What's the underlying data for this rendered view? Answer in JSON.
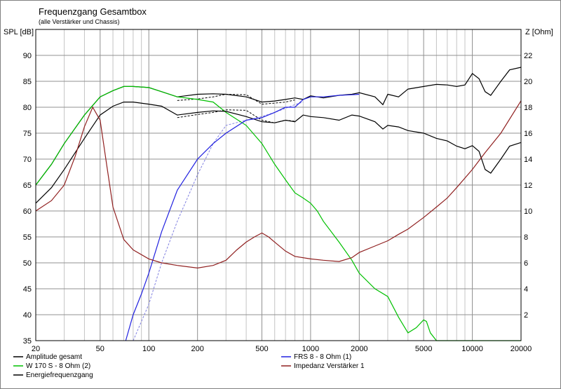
{
  "chart_data": {
    "type": "line",
    "title": "Frequenzgang Gesamtbox",
    "subtitle": "(alle Verstärker und Chassis)",
    "ylabel": "SPL [dB]",
    "y2label": "Z [Ohm]",
    "xscale": "log",
    "xlim": [
      20,
      20000
    ],
    "ylim": [
      35,
      95
    ],
    "y2lim": [
      0,
      24
    ],
    "xticks": [
      20,
      50,
      100,
      200,
      500,
      1000,
      2000,
      5000,
      10000,
      20000
    ],
    "yticks": [
      35,
      40,
      45,
      50,
      55,
      60,
      65,
      70,
      75,
      80,
      85,
      90
    ],
    "y2ticks": [
      2,
      4,
      6,
      8,
      10,
      12,
      14,
      16,
      18,
      20,
      22
    ],
    "grid": true,
    "legend_position": "bottom",
    "series": [
      {
        "name": "Amplitude gesamt",
        "color": "#000000",
        "axis": "left",
        "x": [
          20,
          25,
          30,
          40,
          50,
          60,
          70,
          80,
          100,
          120,
          150,
          200,
          250,
          300,
          400,
          500,
          600,
          700,
          800,
          900,
          1000,
          1200,
          1500,
          1800,
          2000,
          2500,
          2800,
          3000,
          3500,
          4000,
          5000,
          6000,
          7000,
          8000,
          9000,
          10000,
          11000,
          12000,
          13000,
          15000,
          17000,
          20000
        ],
        "y": [
          65,
          69,
          73,
          78.5,
          82,
          83.2,
          84,
          84,
          83.8,
          83,
          82,
          82.5,
          82.6,
          82.5,
          82,
          81,
          81.2,
          81.5,
          81.8,
          81.5,
          82.2,
          81.8,
          82.3,
          82.5,
          82.8,
          82,
          80.5,
          82.5,
          82,
          83.5,
          84,
          84.4,
          84.3,
          84,
          84.3,
          86.5,
          85.5,
          83,
          82.3,
          85,
          87.2,
          87.7
        ]
      },
      {
        "name": "W 170 S - 8 Ohm (2)",
        "color": "#00c000",
        "axis": "left",
        "x": [
          20,
          25,
          30,
          40,
          50,
          60,
          70,
          80,
          100,
          120,
          150,
          200,
          250,
          300,
          400,
          500,
          600,
          700,
          800,
          900,
          1000,
          1100,
          1200,
          1500,
          1800,
          2000,
          2500,
          3000,
          3500,
          4000,
          4500,
          5000,
          5200,
          5500,
          6000,
          7000,
          10000,
          20000
        ],
        "y": [
          65,
          69,
          73,
          78.5,
          82,
          83.2,
          84,
          84,
          83.8,
          83,
          82,
          81.5,
          81,
          79,
          76.5,
          73,
          69,
          66,
          63.5,
          62.5,
          61.5,
          60,
          58,
          54,
          50.5,
          48,
          45,
          43.5,
          39.5,
          36.5,
          37.5,
          39,
          38.7,
          36.5,
          35,
          35,
          35,
          35
        ]
      },
      {
        "name": "Energiefrequenzgang",
        "color": "#000000",
        "axis": "left",
        "x": [
          20,
          25,
          30,
          40,
          50,
          60,
          70,
          80,
          100,
          120,
          150,
          200,
          250,
          300,
          400,
          500,
          600,
          700,
          800,
          900,
          1000,
          1200,
          1500,
          1800,
          2000,
          2500,
          2800,
          3000,
          3500,
          4000,
          5000,
          6000,
          7000,
          8000,
          9000,
          10000,
          11000,
          12000,
          13000,
          15000,
          17000,
          20000
        ],
        "y": [
          61.5,
          64.5,
          68,
          74,
          78.5,
          80.2,
          81,
          81,
          80.6,
          80.2,
          78.5,
          79,
          79.3,
          79.2,
          78.2,
          77.2,
          77,
          77.5,
          77.2,
          78.5,
          78.2,
          78,
          77.5,
          78.5,
          78.3,
          77.2,
          75.8,
          76.5,
          76.2,
          75.5,
          75,
          74,
          73.5,
          72.5,
          72,
          72.6,
          71.5,
          68,
          67.3,
          70,
          72.5,
          73.2
        ]
      },
      {
        "name": "FRS 8 - 8 Ohm (1)",
        "color": "#2020e0",
        "axis": "left",
        "x": [
          72,
          80,
          90,
          100,
          120,
          150,
          200,
          250,
          300,
          400,
          500,
          600,
          700,
          800,
          900,
          1000,
          1200,
          1500,
          1800,
          2000
        ],
        "y": [
          35,
          40,
          44,
          48,
          56,
          64,
          70,
          73,
          75,
          77.5,
          78,
          79,
          80,
          80,
          81.5,
          82,
          82,
          82.3,
          82.4,
          82.5
        ]
      },
      {
        "name": "Impedanz Verstärker 1",
        "color": "#902020",
        "axis": "right",
        "x": [
          20,
          25,
          30,
          35,
          40,
          45,
          50,
          55,
          60,
          70,
          80,
          100,
          120,
          150,
          200,
          250,
          300,
          350,
          400,
          450,
          500,
          550,
          600,
          700,
          800,
          1000,
          1200,
          1500,
          1800,
          2000,
          2500,
          3000,
          3500,
          4000,
          5000,
          6000,
          7000,
          8000,
          10000,
          12000,
          15000,
          20000
        ],
        "y": [
          10,
          10.8,
          12,
          14.2,
          16.5,
          18,
          17,
          13.5,
          10.3,
          7.8,
          7,
          6.3,
          6,
          5.8,
          5.6,
          5.8,
          6.2,
          7,
          7.6,
          8,
          8.3,
          8,
          7.6,
          6.9,
          6.5,
          6.3,
          6.2,
          6.1,
          6.4,
          6.8,
          7.3,
          7.7,
          8.2,
          8.6,
          9.5,
          10.3,
          11,
          11.8,
          13.2,
          14.5,
          16,
          18.5
        ]
      }
    ],
    "dashed_series": [
      {
        "color": "#000000",
        "axis": "left",
        "x": [
          150,
          200,
          250,
          300,
          400,
          500,
          600,
          700,
          800
        ],
        "y": [
          81.3,
          81.6,
          82,
          82.5,
          82.4,
          80.6,
          80.8,
          81,
          81.4
        ]
      },
      {
        "color": "#000000",
        "axis": "left",
        "x": [
          150,
          200,
          250,
          300,
          400,
          500,
          600,
          700,
          800
        ],
        "y": [
          78,
          78.6,
          79,
          79.5,
          79.4,
          77.5,
          77,
          77.5,
          77.3
        ]
      },
      {
        "color": "#8080e0",
        "axis": "left",
        "x": [
          80,
          100,
          120,
          150,
          200,
          250,
          300,
          400,
          500,
          600,
          700,
          800,
          900
        ],
        "y": [
          35,
          42,
          50,
          58,
          67,
          73,
          76.5,
          77.5,
          78.2,
          79,
          79.8,
          80.5,
          81
        ]
      }
    ]
  }
}
